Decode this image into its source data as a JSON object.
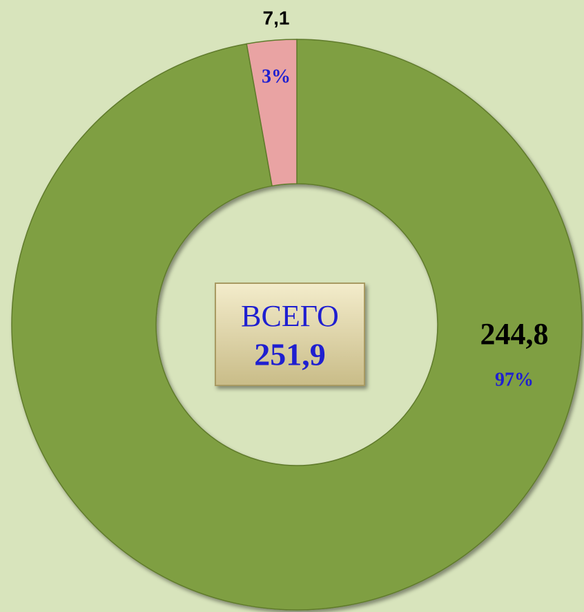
{
  "chart_data": {
    "type": "donut",
    "values": [
      244.8,
      7.1
    ],
    "value_labels": [
      "244,8",
      "7,1"
    ],
    "percent_values": [
      97,
      3
    ],
    "percent_labels": [
      "97%",
      "3%"
    ],
    "colors": [
      "#7f9f42",
      "#e9a3a3"
    ],
    "center_text": [
      "ВСЕГО",
      "251,9"
    ]
  }
}
